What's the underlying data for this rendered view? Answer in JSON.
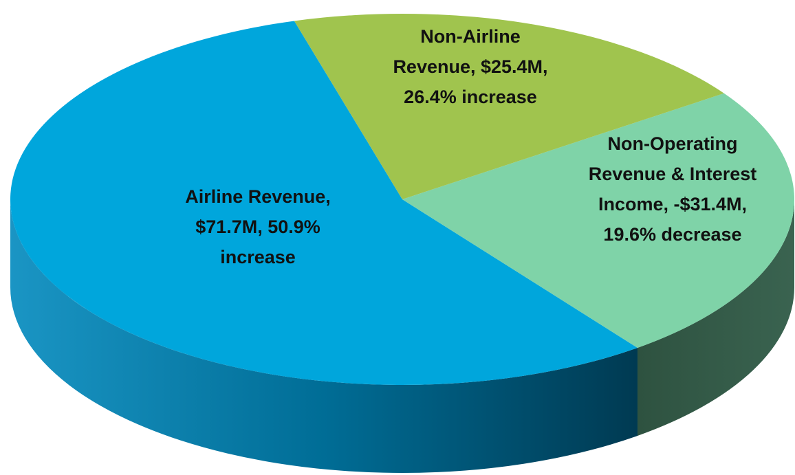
{
  "chart_data": {
    "type": "pie3d",
    "categories": [
      "Airline Revenue",
      "Non-Operating Revenue & Interest Income",
      "Non-Airline Revenue"
    ],
    "values": [
      71.7,
      -31.4,
      25.4
    ],
    "value_labels": [
      "Airline Revenue, $71.7M, 50.9% increase",
      "Non-Operating Revenue & Interest Income, -$31.4M, 19.6% decrease",
      "Non-Airline Revenue, $25.4M, 26.4% increase"
    ],
    "colors": [
      "#00a6dc",
      "#7fd3a8",
      "#a0c44e"
    ]
  }
}
